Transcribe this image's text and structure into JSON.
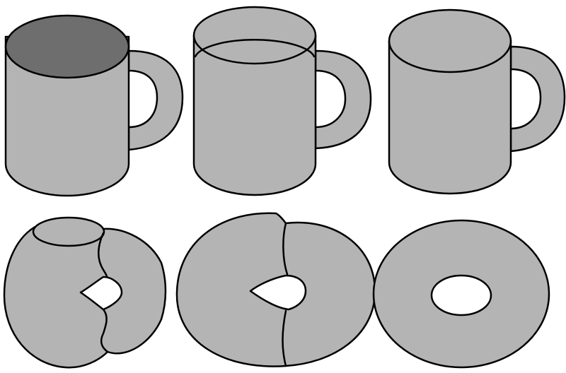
{
  "figure": {
    "steps": [
      {
        "shape": "mug"
      },
      {
        "shape": "mug-shallow"
      },
      {
        "shape": "mug-solid"
      },
      {
        "shape": "mug-flattened"
      },
      {
        "shape": "torus-forming"
      },
      {
        "shape": "torus"
      }
    ]
  },
  "colors": {
    "body": "#b4b4b4",
    "interior": "#6e6e6e",
    "outline": "#000000",
    "background": "#ffffff"
  }
}
